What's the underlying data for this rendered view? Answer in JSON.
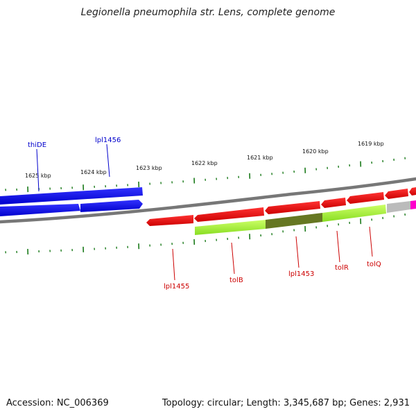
{
  "title": "Legionella pneumophila str. Lens, complete genome",
  "footer": {
    "accession": "Accession: NC_006369",
    "summary": "Topology: circular; Length: 3,345,687 bp; Genes: 2,931"
  },
  "scale": {
    "unit": "kbp",
    "labels": [
      "1625 kbp",
      "1624 kbp",
      "1623 kbp",
      "1622 kbp",
      "1621 kbp",
      "1620 kbp",
      "1619 kbp"
    ]
  },
  "genes": {
    "upper": [
      {
        "name": "thiDE",
        "color": "#0000cc"
      },
      {
        "name": "lpl1456",
        "color": "#0000cc"
      }
    ],
    "lower": [
      {
        "name": "lpl1455",
        "color": "#cc0000"
      },
      {
        "name": "tolB",
        "color": "#cc0000"
      },
      {
        "name": "lpl1453",
        "color": "#cc0000"
      },
      {
        "name": "tolR",
        "color": "#cc0000"
      },
      {
        "name": "tolQ",
        "color": "#cc0000"
      }
    ]
  },
  "colors": {
    "forward_strand": "#0000ff",
    "reverse_strand": "#ee0000",
    "feature_track": "#99ff33",
    "feature_dark": "#667722",
    "tick": "#1a7a1a",
    "backbone": "#777777",
    "misc_feature": "#ff00cc",
    "unknown": "#bbbbbb"
  }
}
